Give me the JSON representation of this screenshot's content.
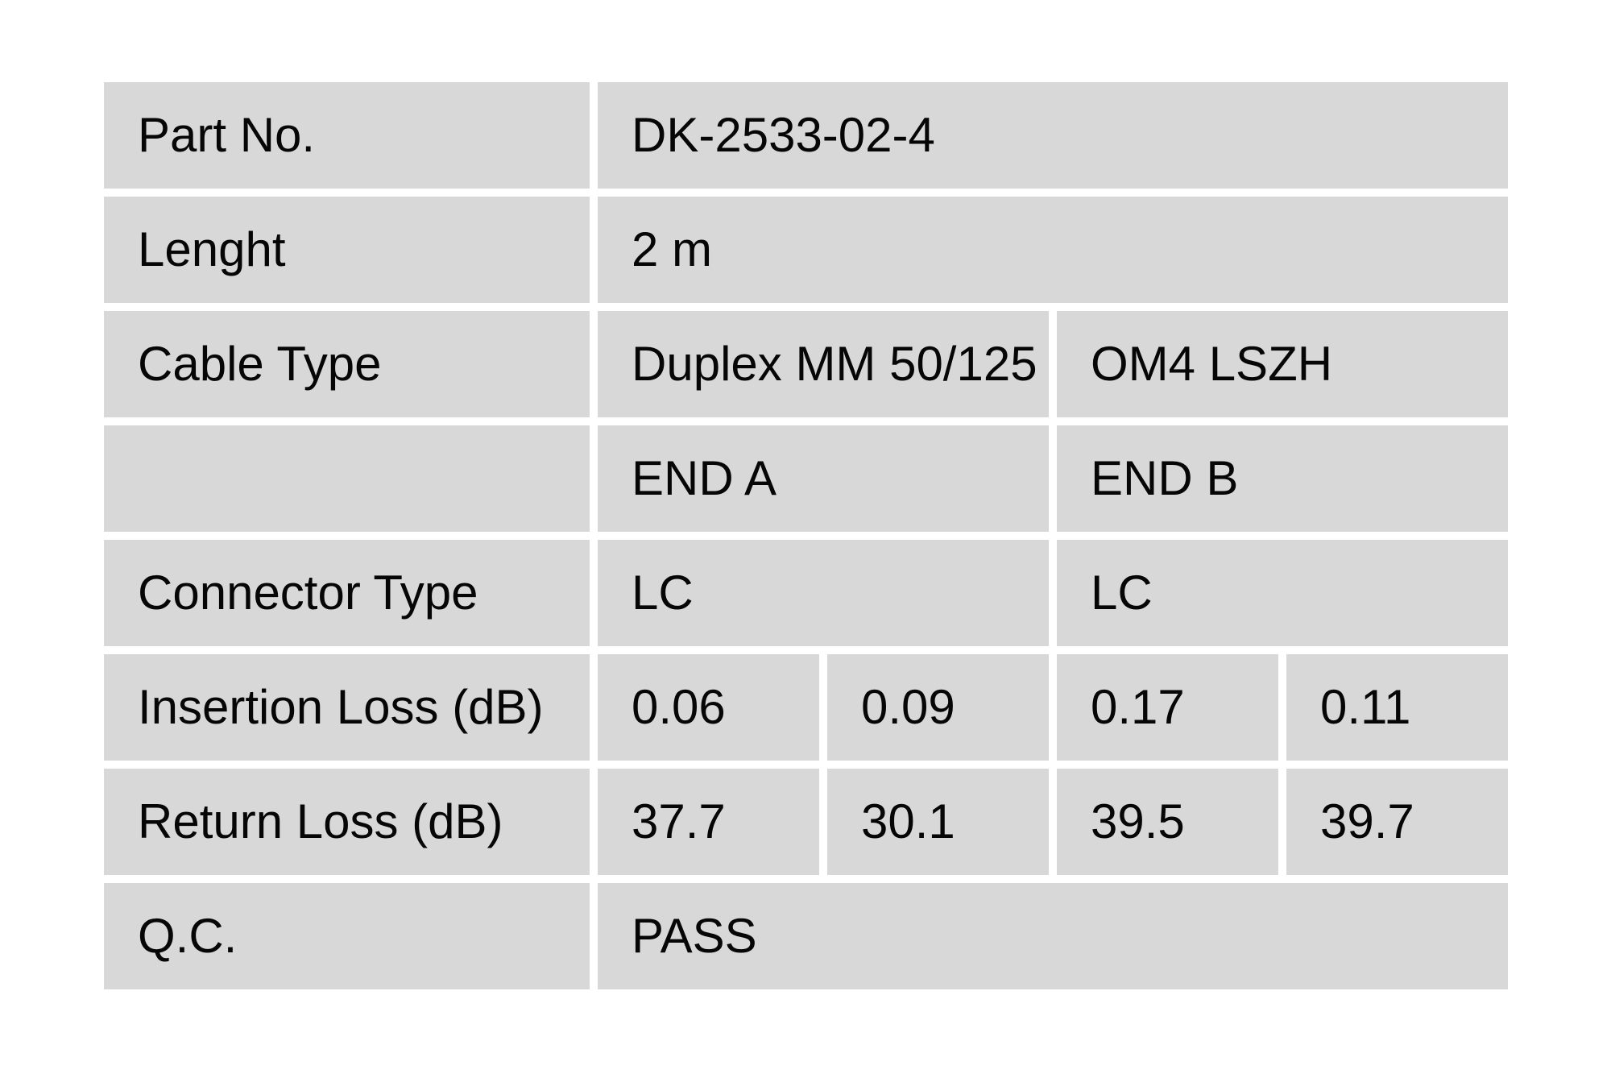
{
  "table": {
    "rows": [
      {
        "label": "Part No.",
        "values": [
          "DK-2533-02-4"
        ]
      },
      {
        "label": "Lenght",
        "values": [
          "2 m"
        ]
      },
      {
        "label": "Cable Type",
        "values": [
          "Duplex MM 50/125",
          "OM4 LSZH"
        ]
      },
      {
        "label": "",
        "values": [
          "END A",
          "END B"
        ]
      },
      {
        "label": "Connector Type",
        "values": [
          "LC",
          "LC"
        ]
      },
      {
        "label": "Insertion Loss (dB)",
        "values": [
          "0.06",
          "0.09",
          "0.17",
          "0.11"
        ]
      },
      {
        "label": "Return Loss (dB)",
        "values": [
          "37.7",
          "30.1",
          "39.5",
          "39.7"
        ]
      },
      {
        "label": "Q.C.",
        "values": [
          "PASS"
        ]
      }
    ]
  },
  "colors": {
    "page_background": "#ffffff",
    "cell_background": "#d8d8d8",
    "text": "#060606"
  }
}
